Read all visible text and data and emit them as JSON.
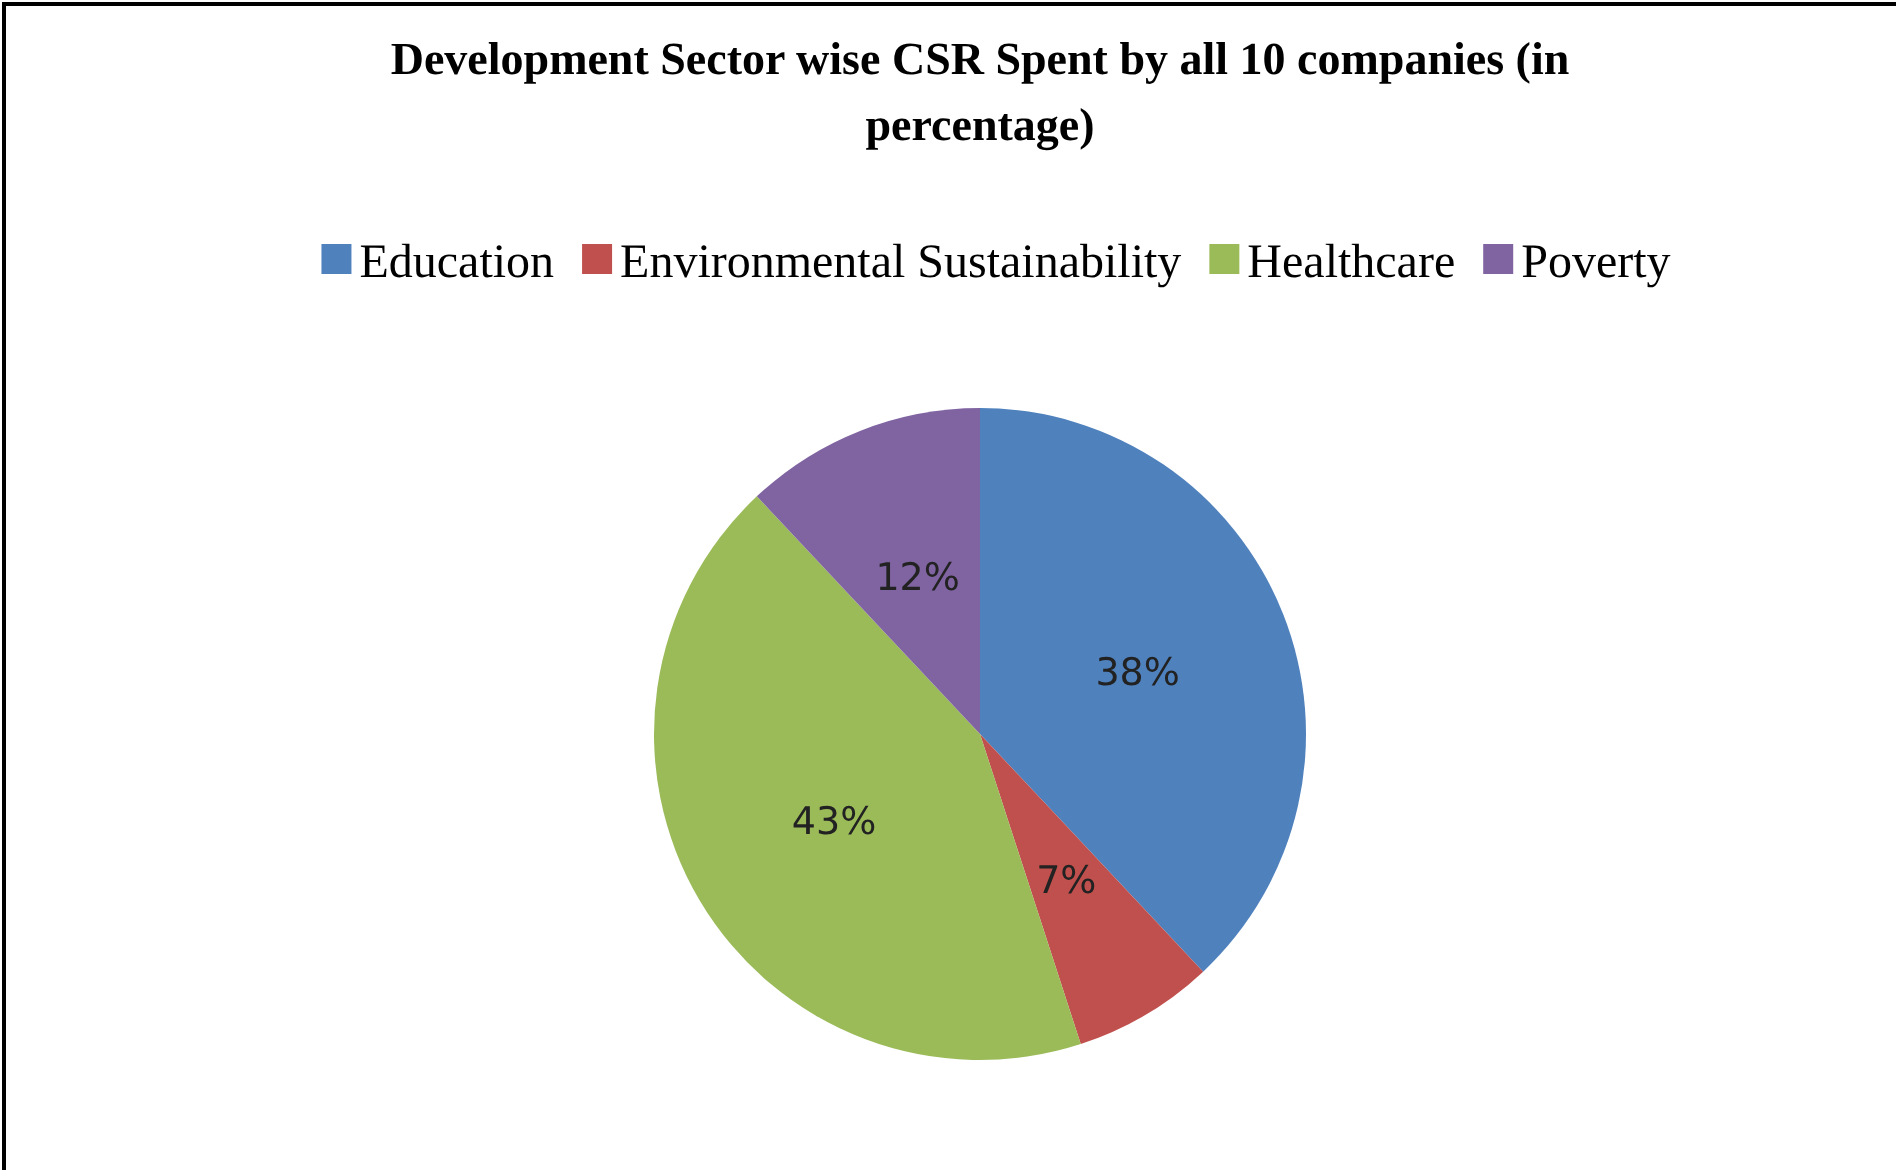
{
  "chart_data": {
    "type": "pie",
    "title": "Development Sector wise CSR Spent by all 10 companies (in percentage)",
    "categories": [
      "Education",
      "Environmental Sustainability",
      "Healthcare",
      "Poverty"
    ],
    "values": [
      38,
      7,
      43,
      12
    ],
    "colors": [
      "#4f81bd",
      "#c0504d",
      "#9bbb59",
      "#8064a2"
    ],
    "value_labels": [
      "38%",
      "7%",
      "43%",
      "12%"
    ],
    "legend": "top"
  }
}
